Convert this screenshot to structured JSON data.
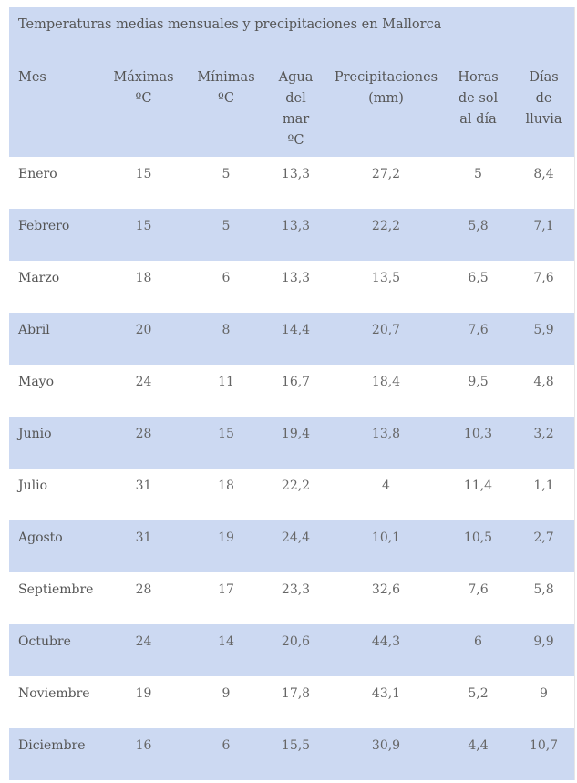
{
  "table": {
    "caption": "Temperaturas medias mensuales y precipitaciones en Mallorca",
    "headers": [
      [
        "Mes"
      ],
      [
        "Máximas",
        "ºC"
      ],
      [
        "Mínimas",
        "ºC"
      ],
      [
        "Agua",
        "del",
        "mar",
        "ºC"
      ],
      [
        "Precipitaciones",
        "(mm)"
      ],
      [
        "Horas",
        "de sol",
        "al día"
      ],
      [
        "Días",
        "de",
        "lluvia"
      ]
    ],
    "rows": [
      [
        "Enero",
        "15",
        "5",
        "13,3",
        "27,2",
        "5",
        "8,4"
      ],
      [
        "Febrero",
        "15",
        "5",
        "13,3",
        "22,2",
        "5,8",
        "7,1"
      ],
      [
        "Marzo",
        "18",
        "6",
        "13,3",
        "13,5",
        "6,5",
        "7,6"
      ],
      [
        "Abril",
        "20",
        "8",
        "14,4",
        "20,7",
        "7,6",
        "5,9"
      ],
      [
        "Mayo",
        "24",
        "11",
        "16,7",
        "18,4",
        "9,5",
        "4,8"
      ],
      [
        "Junio",
        "28",
        "15",
        "19,4",
        "13,8",
        "10,3",
        "3,2"
      ],
      [
        "Julio",
        "31",
        "18",
        "22,2",
        "4",
        "11,4",
        "1,1"
      ],
      [
        "Agosto",
        "31",
        "19",
        "24,4",
        "10,1",
        "10,5",
        "2,7"
      ],
      [
        "Septiembre",
        "28",
        "17",
        "23,3",
        "32,6",
        "7,6",
        "5,8"
      ],
      [
        "Octubre",
        "24",
        "14",
        "20,6",
        "44,3",
        "6",
        "9,9"
      ],
      [
        "Noviembre",
        "19",
        "9",
        "17,8",
        "43,1",
        "5,2",
        "9"
      ],
      [
        "Diciembre",
        "16",
        "6",
        "15,5",
        "30,9",
        "4,4",
        "10,7"
      ]
    ]
  },
  "colors": {
    "header_bg": "#ccd9f2",
    "row_alt_bg": "#ccd9f2",
    "row_bg": "#ffffff",
    "text": "#555555"
  }
}
